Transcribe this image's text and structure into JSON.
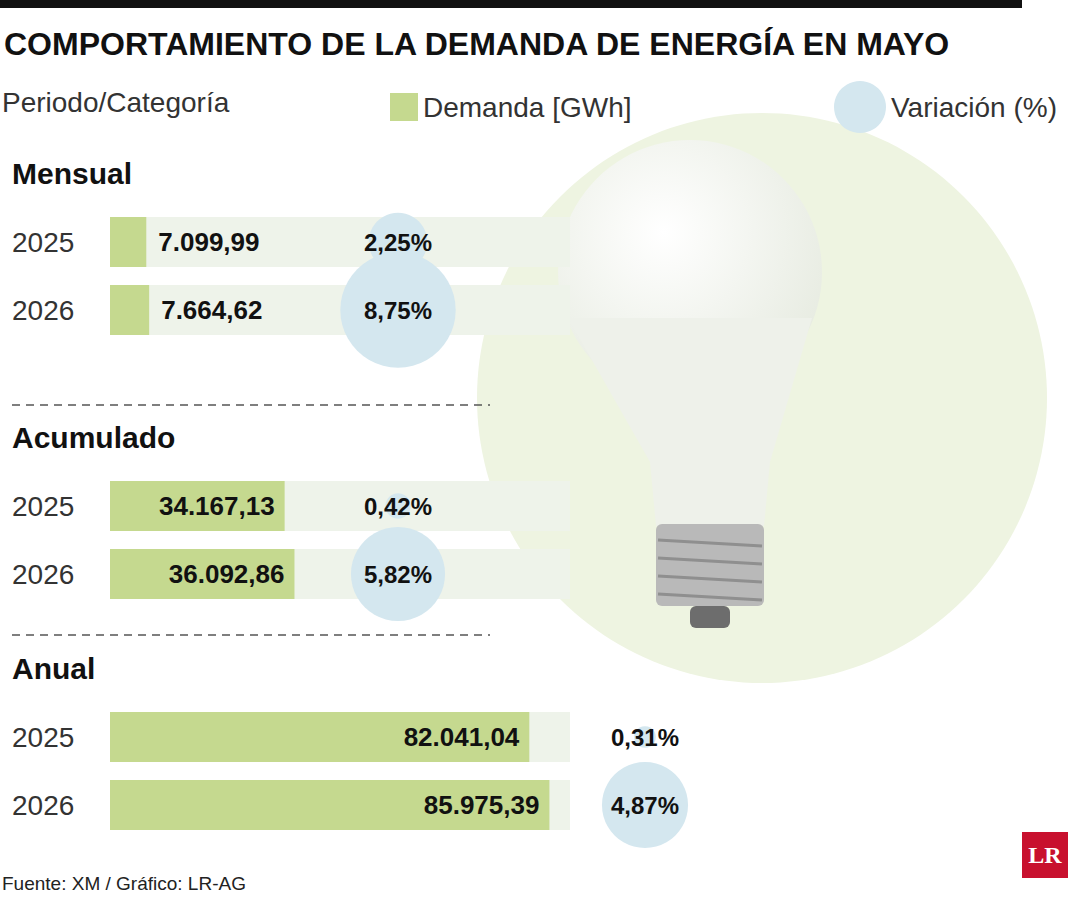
{
  "chart_data": {
    "type": "bar",
    "orientation": "horizontal",
    "title": "COMPORTAMIENTO DE LA DEMANDA DE ENERGÍA EN MAYO",
    "category_label": "Periodo/Categoría",
    "categories": [
      "2025",
      "2026"
    ],
    "series": [
      {
        "name": "Demanda [GWh]",
        "color": "#c5d98f"
      },
      {
        "name": "Variación (%)",
        "color": "#d4e7ef",
        "type": "scatter",
        "marker": "circle"
      }
    ],
    "panels": [
      {
        "title": "Mensual",
        "values": [
          7099.99,
          7664.62
        ],
        "value_labels": [
          "7.099,99",
          "7.664,62"
        ],
        "variation": [
          2.25,
          8.75
        ],
        "variation_labels": [
          "2,25%",
          "8,75%"
        ]
      },
      {
        "title": "Acumulado",
        "values": [
          34167.13,
          36092.86
        ],
        "value_labels": [
          "34.167,13",
          "36.092,86"
        ],
        "variation": [
          0.42,
          5.82
        ],
        "variation_labels": [
          "0,42%",
          "5,82%"
        ]
      },
      {
        "title": "Anual",
        "values": [
          82041.04,
          85975.39
        ],
        "value_labels": [
          "82.041,04",
          "85.975,39"
        ],
        "variation": [
          0.31,
          4.87
        ],
        "variation_labels": [
          "0,31%",
          "4,87%"
        ]
      }
    ],
    "xlim": [
      0,
      90000
    ],
    "tick_labels": "y",
    "data_labels": true,
    "grid": false,
    "legend": "top",
    "source": "Fuente: XM / Gráfico: LR-AG",
    "logo": "LR"
  }
}
